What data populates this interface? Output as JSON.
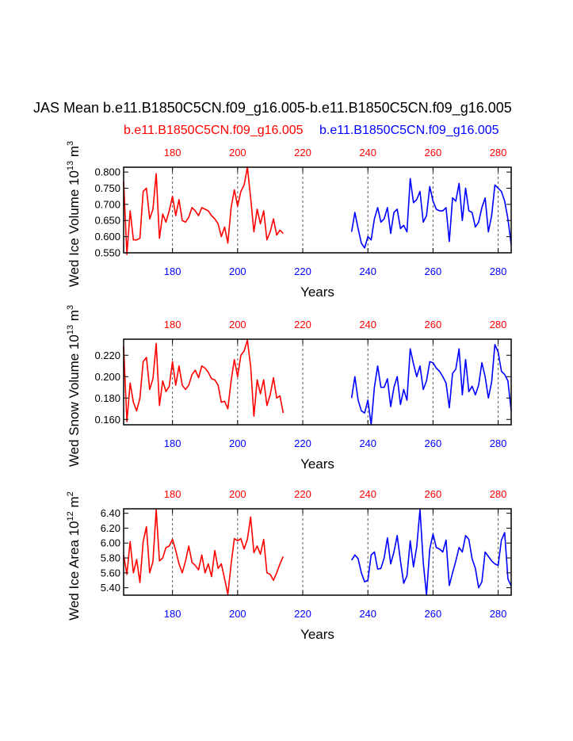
{
  "header": {
    "title": "JAS Mean b.e11.B1850C5CN.f09_g16.005-b.e11.B1850C5CN.f09_g16.005",
    "case_left": "b.e11.B1850C5CN.f09_g16.005",
    "case_right": "b.e11.B1850C5CN.f09_g16.005"
  },
  "colors": {
    "left": "#ff0000",
    "right": "#0000ff",
    "axis": "#000000",
    "grid": "#555555"
  },
  "chart_data": [
    {
      "type": "line",
      "ylabel_main": "Wed Ice Volume 10",
      "ylabel_exp": "13",
      "ylabel_unit": " m",
      "ylabel_unit_exp": "3",
      "xlabel": "Years",
      "xlim": [
        165,
        284
      ],
      "ylim": [
        0.55,
        0.815
      ],
      "yticks": [
        0.55,
        0.6,
        0.65,
        0.7,
        0.75,
        0.8
      ],
      "ytick_labels": [
        "0.550",
        "0.600",
        "0.650",
        "0.700",
        "0.750",
        "0.800"
      ],
      "top_ticks": [
        180,
        200,
        220,
        240,
        260,
        280
      ],
      "bottom_ticks": [
        180,
        200,
        220,
        240,
        260,
        280
      ],
      "grid_x": [
        180,
        200,
        220,
        240,
        260,
        280
      ],
      "series": [
        {
          "name": "b.e11.B1850C5CN.f09_g16.005",
          "color": "#ff0000",
          "x_start": 165,
          "values": [
            0.77,
            0.545,
            0.68,
            0.59,
            0.59,
            0.595,
            0.74,
            0.75,
            0.655,
            0.685,
            0.795,
            0.595,
            0.67,
            0.645,
            0.68,
            0.725,
            0.665,
            0.715,
            0.65,
            0.645,
            0.66,
            0.69,
            0.68,
            0.665,
            0.69,
            0.685,
            0.68,
            0.665,
            0.655,
            0.64,
            0.6,
            0.63,
            0.58,
            0.69,
            0.745,
            0.695,
            0.74,
            0.76,
            0.815,
            0.72,
            0.615,
            0.685,
            0.64,
            0.68,
            0.59,
            0.615,
            0.655,
            0.605,
            0.62,
            0.61
          ]
        },
        {
          "name": "b.e11.B1850C5CN.f09_g16.005",
          "color": "#0000ff",
          "x_start": 235,
          "values": [
            0.615,
            0.675,
            0.625,
            0.58,
            0.565,
            0.6,
            0.59,
            0.655,
            0.69,
            0.645,
            0.655,
            0.69,
            0.61,
            0.675,
            0.685,
            0.625,
            0.635,
            0.615,
            0.78,
            0.705,
            0.715,
            0.74,
            0.645,
            0.665,
            0.755,
            0.71,
            0.685,
            0.68,
            0.68,
            0.69,
            0.585,
            0.72,
            0.71,
            0.765,
            0.65,
            0.75,
            0.68,
            0.675,
            0.63,
            0.645,
            0.69,
            0.72,
            0.615,
            0.665,
            0.76,
            0.75,
            0.74,
            0.71,
            0.655,
            0.575
          ]
        }
      ]
    },
    {
      "type": "line",
      "ylabel_main": "Wed Snow Volume 10",
      "ylabel_exp": "13",
      "ylabel_unit": " m",
      "ylabel_unit_exp": "3",
      "xlabel": "Years",
      "xlim": [
        165,
        284
      ],
      "ylim": [
        0.155,
        0.235
      ],
      "yticks": [
        0.16,
        0.18,
        0.2,
        0.22
      ],
      "ytick_labels": [
        "0.160",
        "0.180",
        "0.200",
        "0.220"
      ],
      "top_ticks": [
        180,
        200,
        220,
        240,
        260,
        280
      ],
      "bottom_ticks": [
        180,
        200,
        220,
        240,
        260,
        280
      ],
      "grid_x": [
        180,
        200,
        220,
        240,
        260,
        280
      ],
      "series": [
        {
          "name": "b.e11.B1850C5CN.f09_g16.005",
          "color": "#ff0000",
          "x_start": 165,
          "values": [
            0.228,
            0.158,
            0.194,
            0.176,
            0.168,
            0.18,
            0.214,
            0.218,
            0.188,
            0.198,
            0.231,
            0.173,
            0.196,
            0.186,
            0.191,
            0.214,
            0.192,
            0.21,
            0.192,
            0.188,
            0.192,
            0.202,
            0.206,
            0.199,
            0.21,
            0.208,
            0.204,
            0.198,
            0.197,
            0.192,
            0.176,
            0.177,
            0.17,
            0.196,
            0.216,
            0.2,
            0.22,
            0.224,
            0.234,
            0.21,
            0.163,
            0.197,
            0.184,
            0.197,
            0.173,
            0.183,
            0.199,
            0.18,
            0.182,
            0.166
          ]
        },
        {
          "name": "b.e11.B1850C5CN.f09_g16.005",
          "color": "#0000ff",
          "x_start": 235,
          "values": [
            0.18,
            0.2,
            0.178,
            0.168,
            0.166,
            0.178,
            0.155,
            0.19,
            0.21,
            0.19,
            0.19,
            0.198,
            0.172,
            0.19,
            0.2,
            0.174,
            0.188,
            0.178,
            0.226,
            0.212,
            0.2,
            0.21,
            0.188,
            0.196,
            0.214,
            0.213,
            0.208,
            0.205,
            0.2,
            0.194,
            0.171,
            0.203,
            0.207,
            0.226,
            0.183,
            0.216,
            0.186,
            0.191,
            0.183,
            0.192,
            0.213,
            0.2,
            0.18,
            0.195,
            0.23,
            0.223,
            0.205,
            0.202,
            0.196,
            0.168
          ]
        }
      ]
    },
    {
      "type": "line",
      "ylabel_main": "Wed Ice Area 10",
      "ylabel_exp": "12",
      "ylabel_unit": " m",
      "ylabel_unit_exp": "2",
      "xlabel": "Years",
      "xlim": [
        165,
        284
      ],
      "ylim": [
        5.3,
        6.46
      ],
      "yticks": [
        5.4,
        5.6,
        5.8,
        6.0,
        6.2,
        6.4
      ],
      "ytick_labels": [
        "5.40",
        "5.60",
        "5.80",
        "6.00",
        "6.20",
        "6.40"
      ],
      "top_ticks": [
        180,
        200,
        220,
        240,
        260,
        280
      ],
      "bottom_ticks": [
        180,
        200,
        220,
        240,
        260,
        280
      ],
      "grid_x": [
        180,
        200,
        220,
        240,
        260,
        280
      ],
      "series": [
        {
          "name": "b.e11.B1850C5CN.f09_g16.005",
          "color": "#ff0000",
          "x_start": 165,
          "values": [
            5.84,
            5.58,
            6.02,
            5.6,
            5.78,
            5.47,
            6.02,
            6.22,
            5.6,
            5.75,
            6.45,
            5.76,
            5.8,
            5.94,
            5.96,
            6.05,
            5.9,
            5.72,
            5.6,
            5.76,
            5.96,
            5.74,
            5.7,
            5.64,
            5.84,
            5.6,
            5.72,
            5.55,
            5.9,
            5.66,
            5.72,
            5.52,
            5.31,
            5.72,
            6.06,
            6.03,
            6.06,
            5.92,
            6.05,
            6.35,
            5.87,
            5.96,
            5.85,
            6.05,
            5.6,
            5.58,
            5.5,
            5.6,
            5.72,
            5.82
          ]
        },
        {
          "name": "b.e11.B1850C5CN.f09_g16.005",
          "color": "#0000ff",
          "x_start": 235,
          "values": [
            5.77,
            5.84,
            5.79,
            5.6,
            5.48,
            5.5,
            5.84,
            5.88,
            5.65,
            5.66,
            5.8,
            6.07,
            5.72,
            5.88,
            6.1,
            5.76,
            5.46,
            5.56,
            6.03,
            5.68,
            5.95,
            6.45,
            5.74,
            5.3,
            5.92,
            6.12,
            5.94,
            5.92,
            5.88,
            6.04,
            5.43,
            5.6,
            5.76,
            5.94,
            5.88,
            6.1,
            6.05,
            5.79,
            5.66,
            5.4,
            5.48,
            5.88,
            5.82,
            5.76,
            5.72,
            5.7,
            6.04,
            6.14,
            5.52,
            5.42
          ]
        }
      ]
    }
  ]
}
